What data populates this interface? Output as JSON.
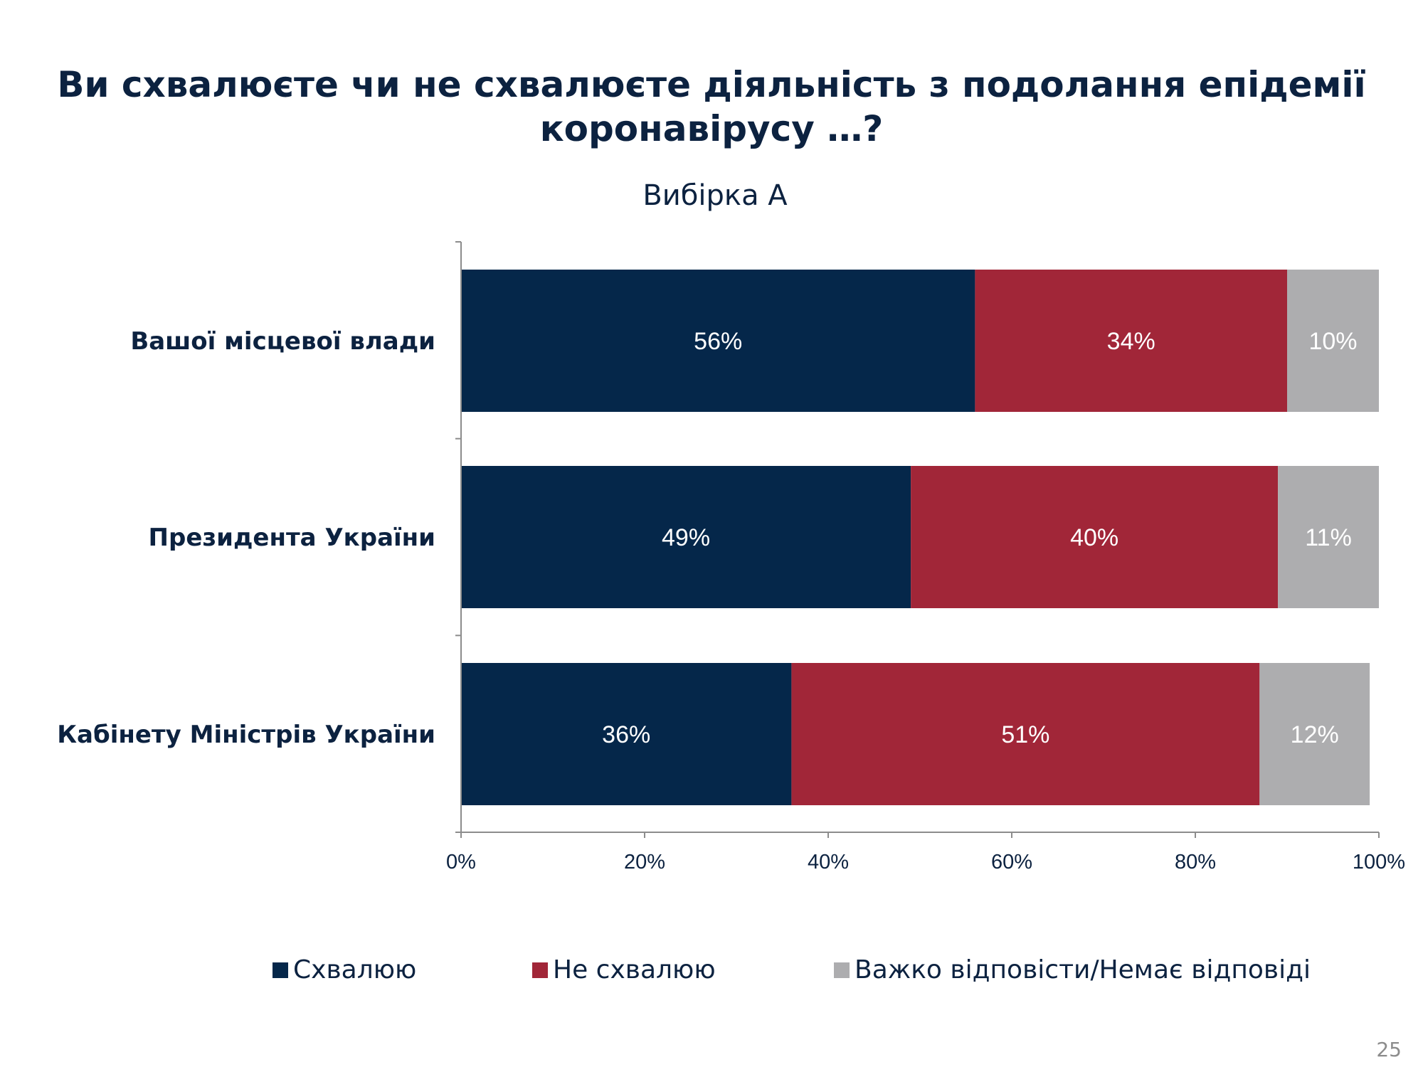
{
  "chart_data": {
    "type": "bar",
    "orientation": "horizontal",
    "stacked": true,
    "title": "Ви схвалюєте чи не схвалюєте діяльність з подолання епідемії коронавірусу …?",
    "title_lines": [
      "Ви схвалюєте чи не схвалюєте діяльність з подолання епідемії",
      "коронавірусу …?"
    ],
    "subtitle": "Вибірка А",
    "categories": [
      "Вашої місцевої влади",
      "Президента України",
      "Кабінету Міністрів України"
    ],
    "series": [
      {
        "name": "Схвалюю",
        "color": "#05274a",
        "values": [
          56,
          49,
          36
        ],
        "labels": [
          "56%",
          "49%",
          "36%"
        ]
      },
      {
        "name": "Не схвалюю",
        "color": "#a12638",
        "values": [
          34,
          40,
          51
        ],
        "labels": [
          "34%",
          "40%",
          "51%"
        ]
      },
      {
        "name": "Важко відповісти/Немає відповіді",
        "color": "#adadaf",
        "values": [
          10,
          11,
          12
        ],
        "labels": [
          "10%",
          "11%",
          "12%"
        ]
      }
    ],
    "xlim": [
      0,
      100
    ],
    "x_ticks": [
      "0%",
      "20%",
      "40%",
      "60%",
      "80%",
      "100%"
    ],
    "grid": false,
    "legend_position": "bottom"
  },
  "page_number": "25"
}
